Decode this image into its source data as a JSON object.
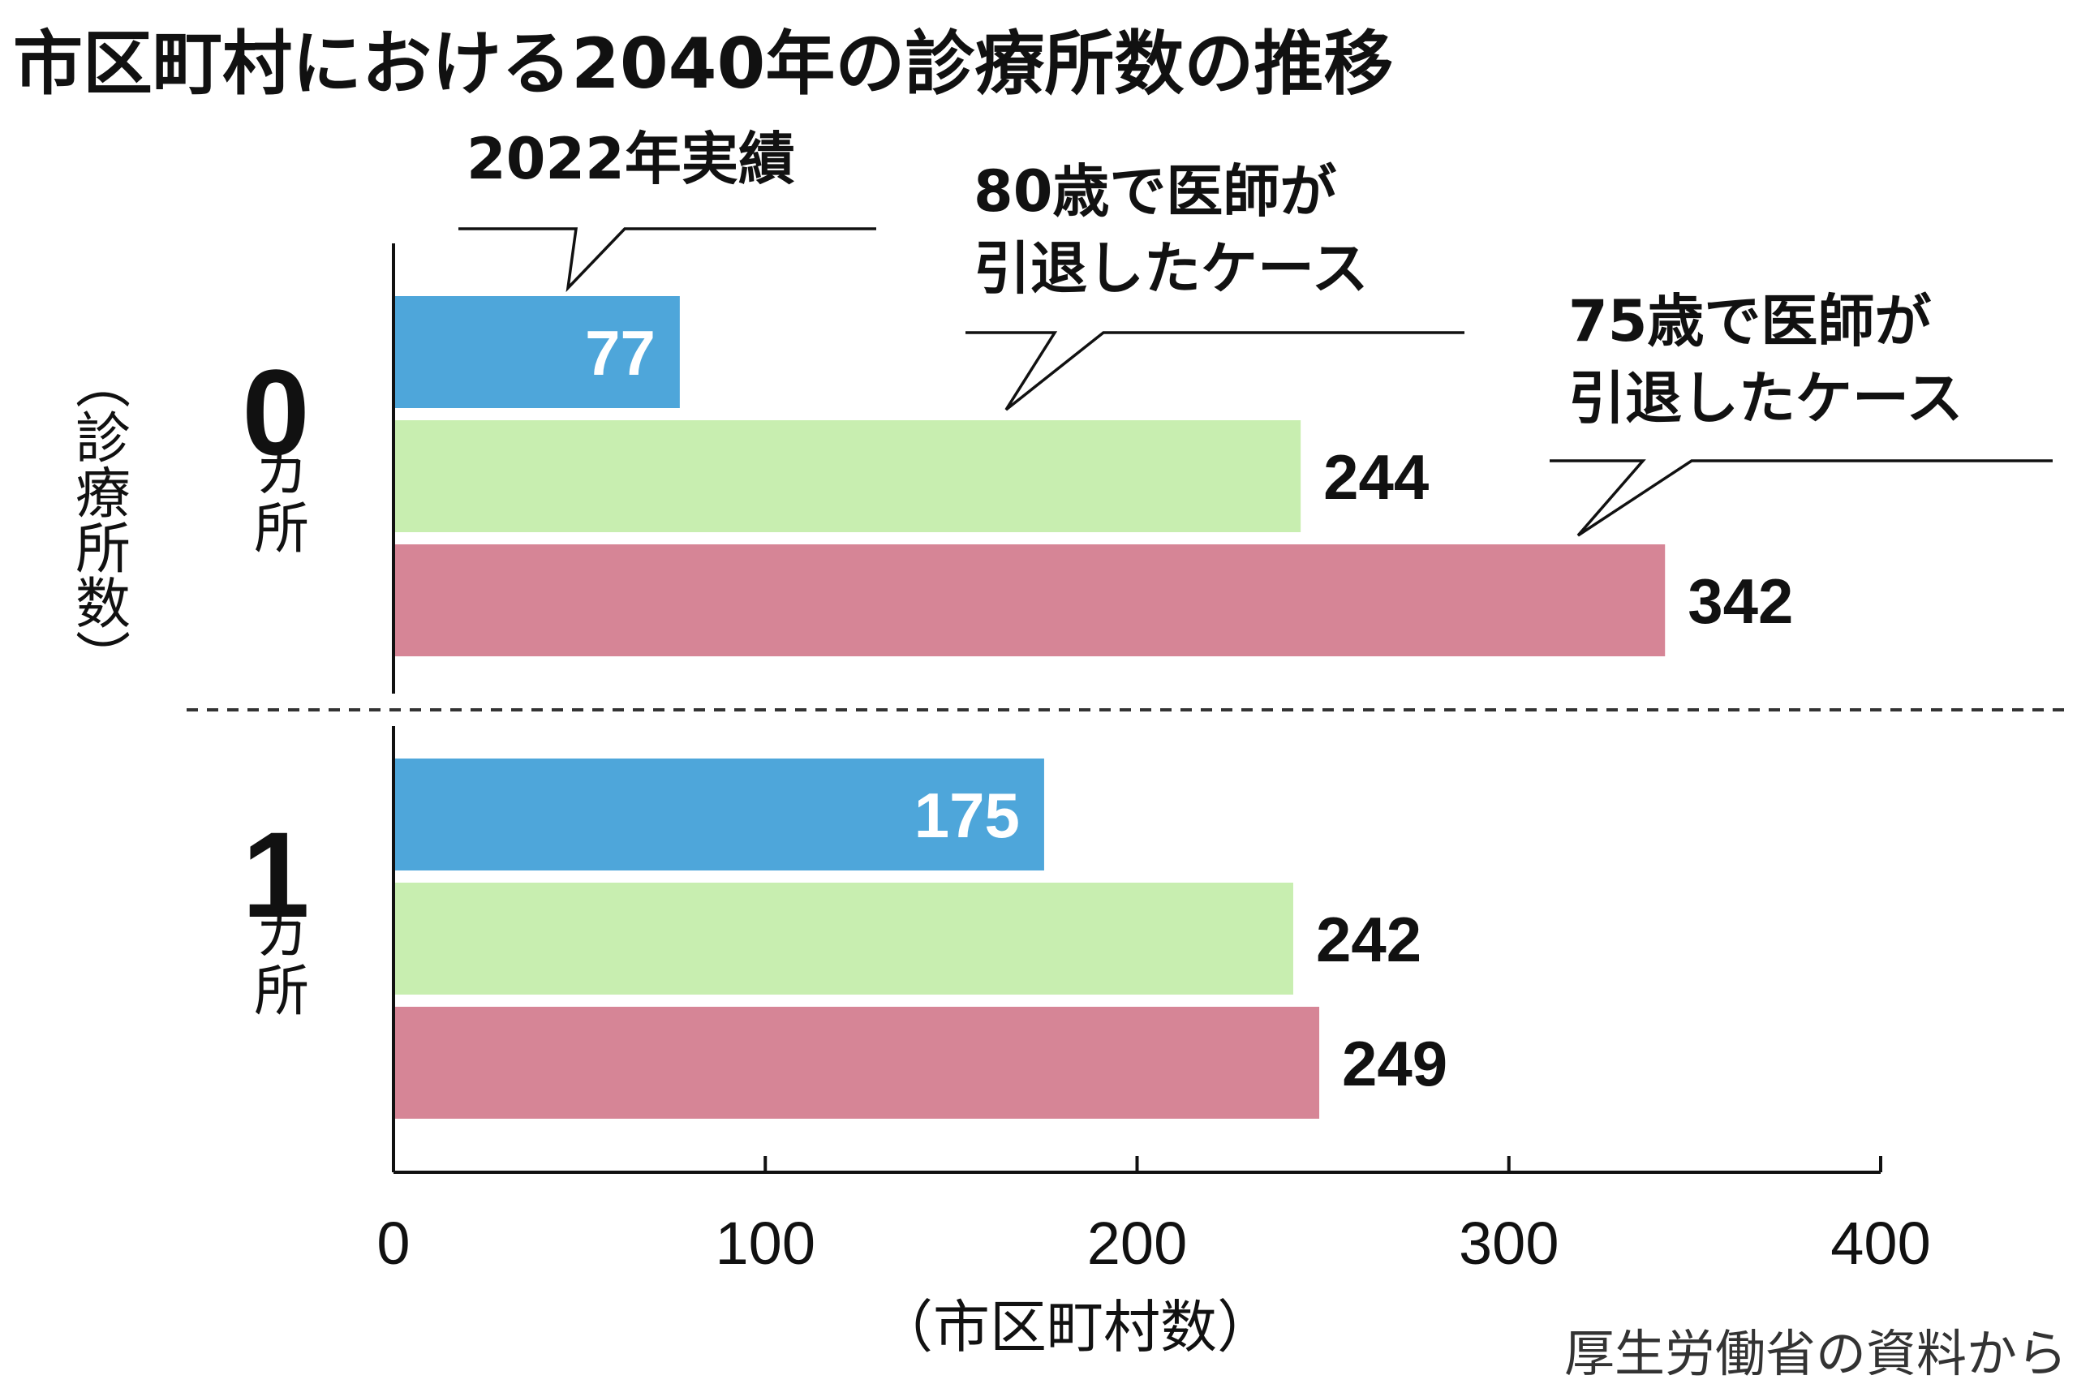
{
  "chart_data": {
    "type": "bar",
    "orientation": "horizontal",
    "title": "市区町村における2040年の診療所数の推移",
    "categories": [
      {
        "number": "0",
        "unit": "カ所"
      },
      {
        "number": "1",
        "unit": "カ所"
      }
    ],
    "series": [
      {
        "name": "2022年実績",
        "label_lines": [
          "2022年実績"
        ],
        "color": "#4ea6da",
        "label_color": "#ffffff",
        "values": [
          77,
          175
        ]
      },
      {
        "name": "80歳で医師が引退したケース",
        "label_lines": [
          "80歳で医師が",
          "引退したケース"
        ],
        "color": "#c8eeb0",
        "label_color": "#111111",
        "values": [
          244,
          242
        ]
      },
      {
        "name": "75歳で医師が引退したケース",
        "label_lines": [
          "75歳で医師が",
          "引退したケース"
        ],
        "color": "#d68596",
        "label_color": "#111111",
        "values": [
          342,
          249
        ]
      }
    ],
    "xlim": [
      0,
      400
    ],
    "xticks": [
      "0",
      "100",
      "200",
      "300",
      "400"
    ],
    "xlabel": "（市区町村数）",
    "ylabel": "（診療所数）",
    "source": "厚生労働省の資料から",
    "legend": "callouts"
  }
}
